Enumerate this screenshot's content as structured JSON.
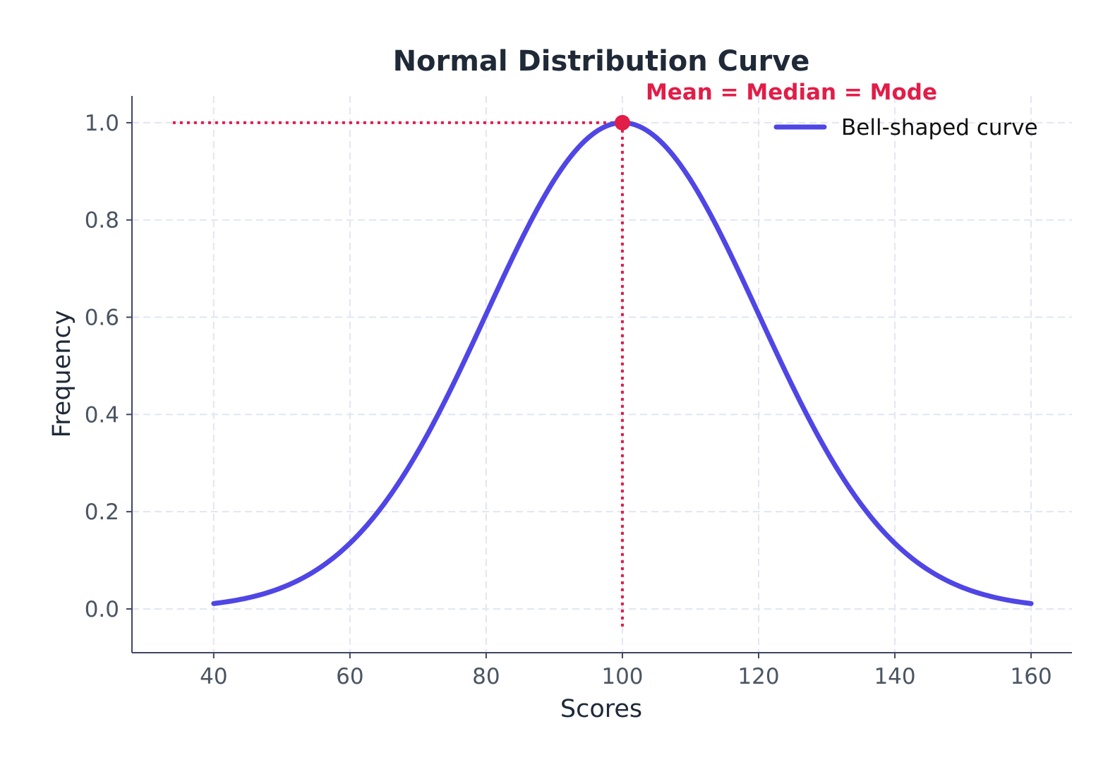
{
  "chart_data": {
    "type": "line",
    "title": "Normal Distribution Curve",
    "xlabel": "Scores",
    "ylabel": "Frequency",
    "xlim": [
      28,
      166
    ],
    "ylim": [
      -0.09,
      1.055
    ],
    "x_ticks": [
      "40",
      "60",
      "80",
      "100",
      "120",
      "140",
      "160"
    ],
    "y_ticks": [
      "0.0",
      "0.2",
      "0.4",
      "0.6",
      "0.8",
      "1.0"
    ],
    "grid": true,
    "legend_position": "top-right",
    "series": [
      {
        "name": "Bell-shaped curve",
        "color": "#4f46e5",
        "x": [
          40,
          45,
          50,
          55,
          60,
          65,
          70,
          75,
          80,
          85,
          90,
          95,
          100,
          105,
          110,
          115,
          120,
          125,
          130,
          135,
          140,
          145,
          150,
          155,
          160
        ],
        "y": [
          0.011,
          0.022,
          0.044,
          0.081,
          0.135,
          0.216,
          0.325,
          0.458,
          0.607,
          0.755,
          0.882,
          0.969,
          1.0,
          0.969,
          0.882,
          0.755,
          0.607,
          0.458,
          0.325,
          0.216,
          0.135,
          0.081,
          0.044,
          0.022,
          0.011
        ]
      }
    ],
    "annotations": [
      {
        "text": "Mean = Median = Mode",
        "x": 100,
        "y": 1.0,
        "color": "#e11d48"
      }
    ],
    "reference_lines": {
      "color": "#e11d48",
      "horizontal": {
        "y": 1.0,
        "x_from": 34,
        "x_to": 100
      },
      "vertical": {
        "x": 100,
        "y_from": -0.04,
        "y_to": 1.0
      }
    }
  }
}
